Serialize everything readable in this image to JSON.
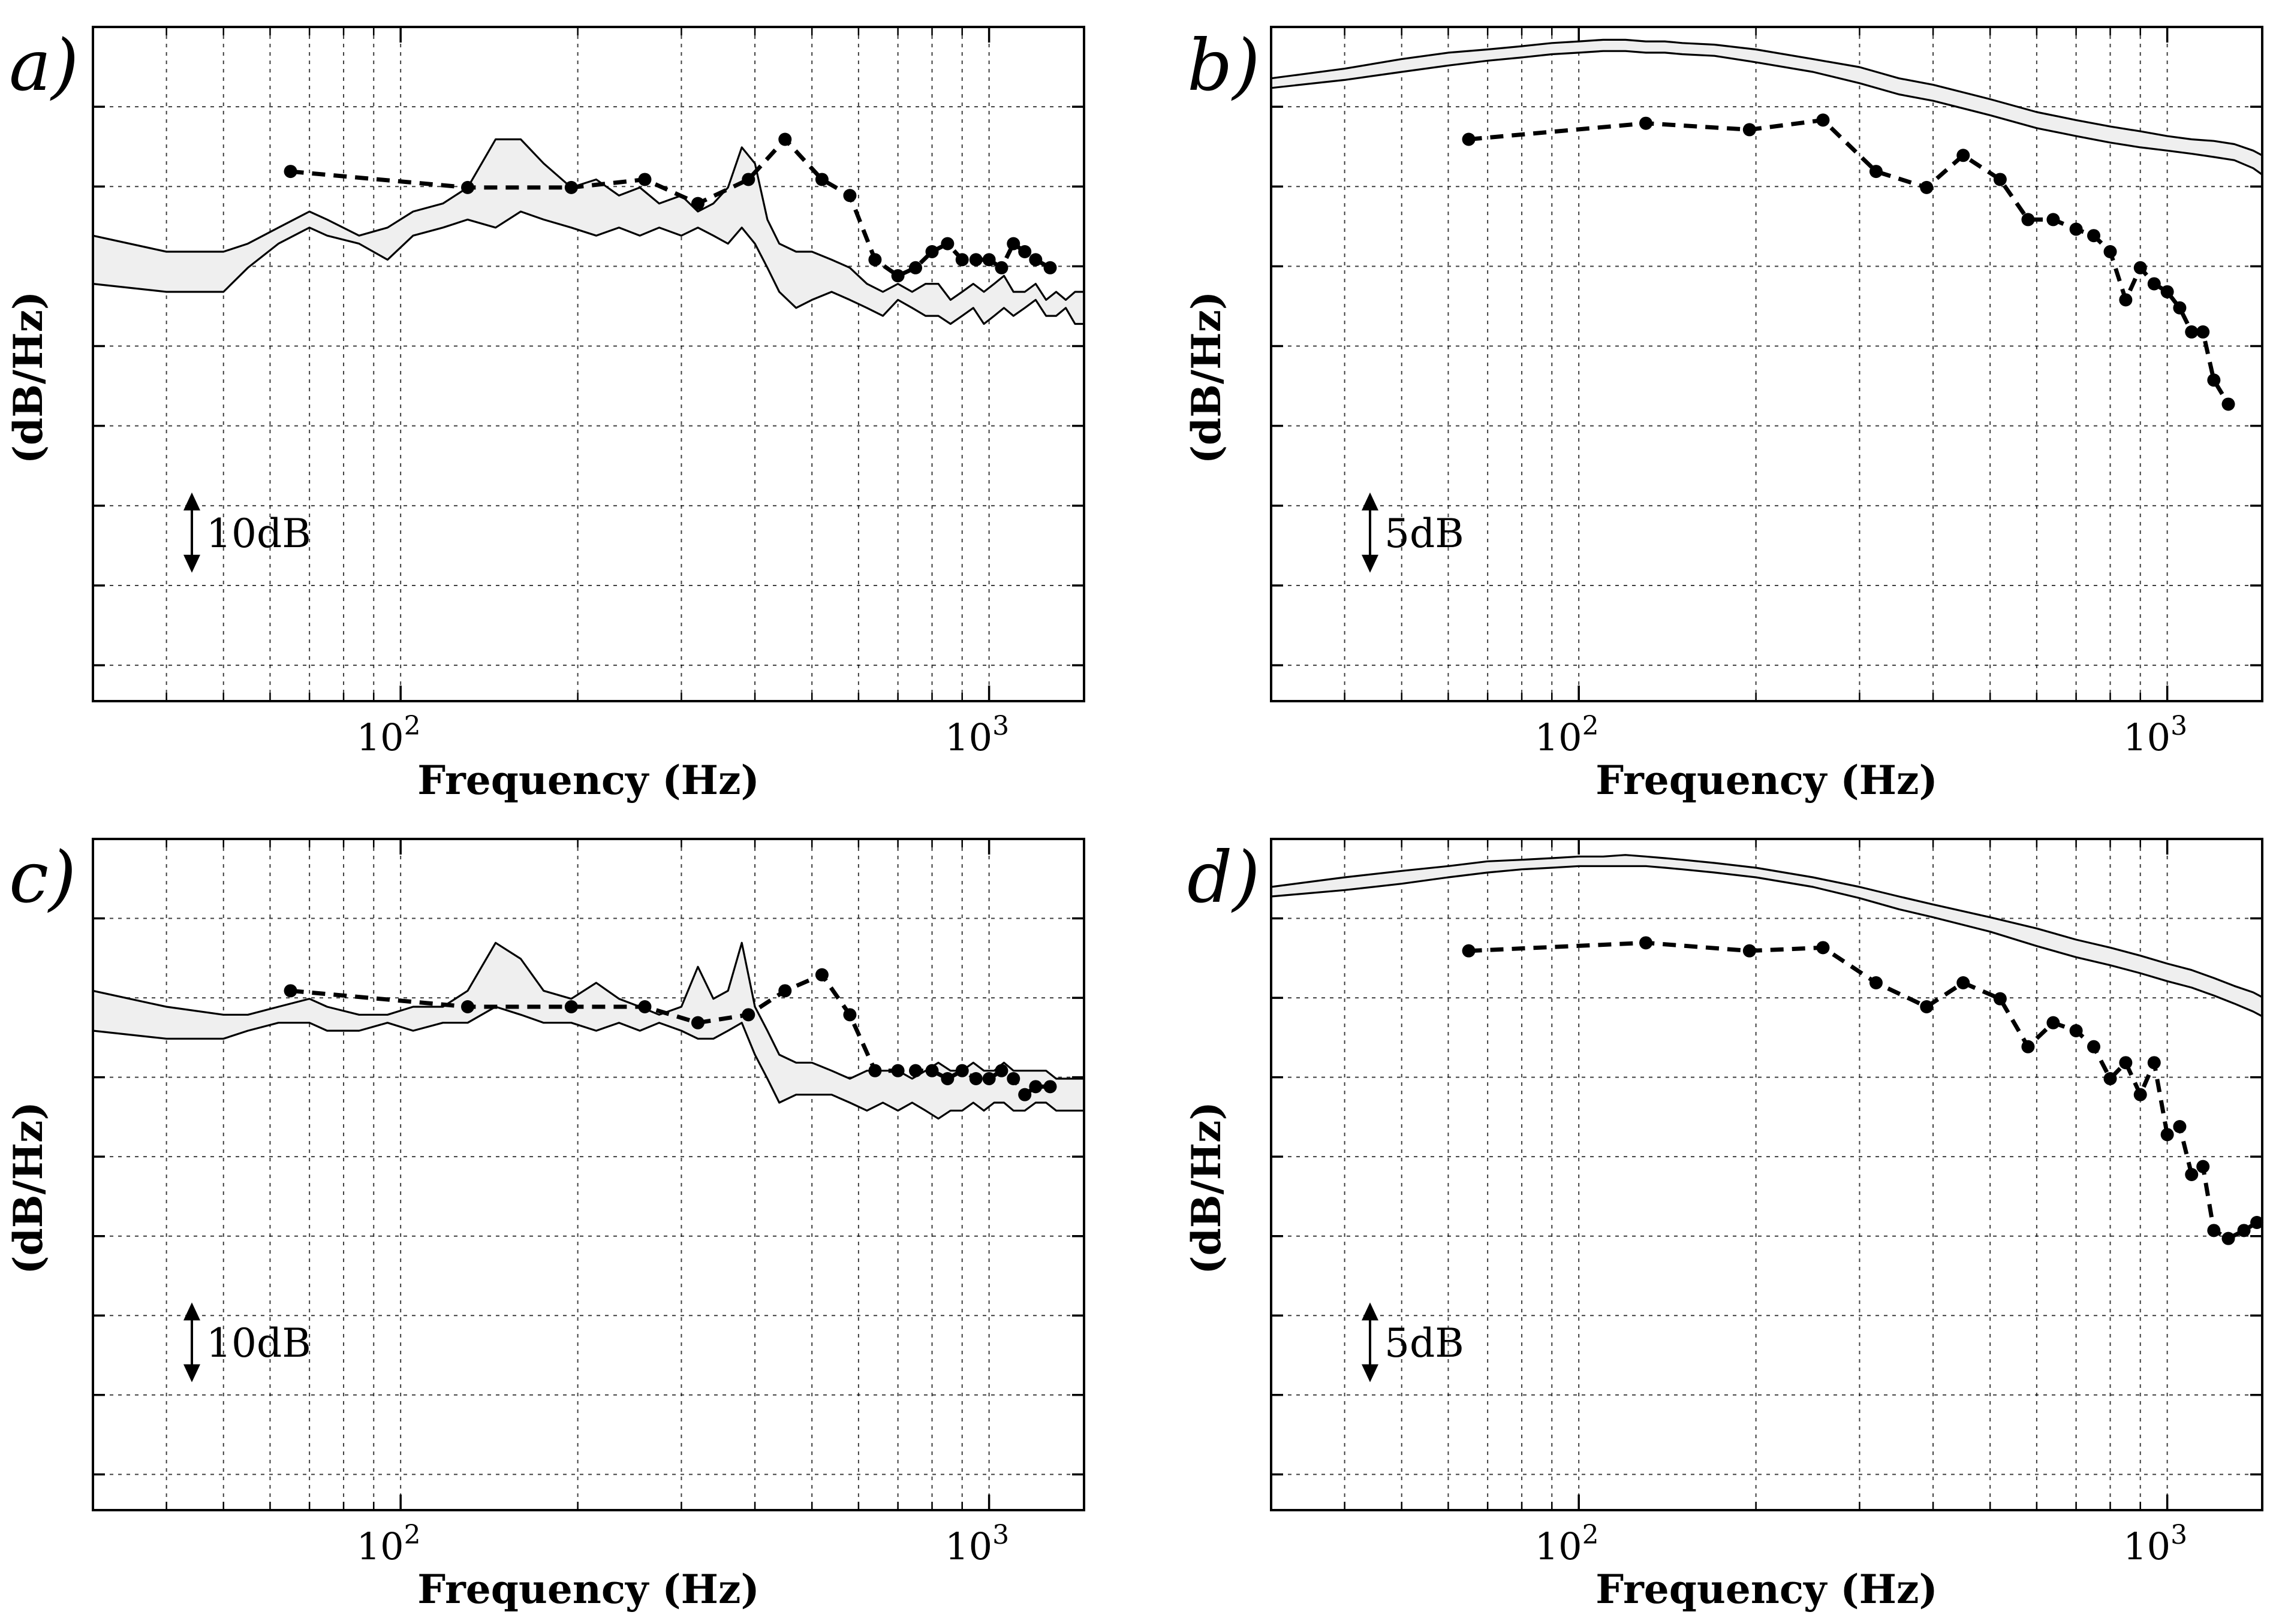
{
  "chart_data": [
    {
      "panel": "a)",
      "type": "line",
      "xlabel": "Frequency (Hz)",
      "ylabel": "(dB/Hz)",
      "xscale": "log",
      "xlim": [
        30,
        1450
      ],
      "ylim": [
        -62,
        22
      ],
      "grid": true,
      "x_ticks": [
        "10^2",
        "10^3"
      ],
      "scale_bar": "10dB",
      "scale_bar_value": 10,
      "band": {
        "x": [
          30,
          40,
          50,
          55,
          62,
          70,
          75,
          85,
          95,
          105,
          118,
          130,
          145,
          160,
          175,
          195,
          215,
          235,
          255,
          275,
          300,
          320,
          340,
          360,
          380,
          400,
          420,
          440,
          470,
          500,
          540,
          580,
          620,
          660,
          700,
          740,
          780,
          820,
          860,
          900,
          940,
          980,
          1020,
          1060,
          1100,
          1150,
          1200,
          1250,
          1300,
          1350,
          1400,
          1450
        ],
        "upper": [
          -4,
          -6,
          -6,
          -5,
          -3,
          -1,
          -2,
          -4,
          -3,
          -1,
          0,
          2,
          8,
          8,
          5,
          2,
          3,
          1,
          2,
          0,
          1,
          -1,
          0,
          2,
          7,
          5,
          -2,
          -5,
          -6,
          -6,
          -7,
          -8,
          -10,
          -11,
          -10,
          -11,
          -10,
          -10,
          -12,
          -11,
          -10,
          -11,
          -10,
          -9,
          -11,
          -11,
          -10,
          -12,
          -11,
          -12,
          -11,
          -11
        ],
        "lower": [
          -10,
          -11,
          -11,
          -8,
          -5,
          -3,
          -4,
          -5,
          -7,
          -4,
          -3,
          -2,
          -3,
          -1,
          -2,
          -3,
          -4,
          -3,
          -4,
          -3,
          -4,
          -3,
          -4,
          -5,
          -3,
          -5,
          -8,
          -11,
          -13,
          -12,
          -11,
          -12,
          -13,
          -14,
          -12,
          -13,
          -14,
          -14,
          -15,
          -14,
          -13,
          -15,
          -14,
          -13,
          -14,
          -13,
          -12,
          -14,
          -14,
          -13,
          -15,
          -15
        ]
      },
      "dashed_series": {
        "x": [
          65,
          130,
          195,
          260,
          320,
          390,
          450,
          520,
          580,
          640,
          700,
          750,
          800,
          850,
          900,
          950,
          1000,
          1050,
          1100,
          1150,
          1200,
          1270
        ],
        "y": [
          4,
          2,
          2,
          3,
          0,
          3,
          8,
          3,
          1,
          -7,
          -9,
          -8,
          -6,
          -5,
          -7,
          -7,
          -7,
          -8,
          -5,
          -6,
          -7,
          -8
        ]
      }
    },
    {
      "panel": "b)",
      "type": "line",
      "xlabel": "Frequency (Hz)",
      "ylabel": "(dB/Hz)",
      "xscale": "log",
      "xlim": [
        30,
        1450
      ],
      "ylim": [
        -38,
        4
      ],
      "grid": true,
      "x_ticks": [
        "10^2",
        "10^3"
      ],
      "scale_bar": "5dB",
      "scale_bar_value": 5,
      "band": {
        "x": [
          30,
          40,
          50,
          60,
          70,
          80,
          90,
          100,
          110,
          120,
          130,
          140,
          150,
          170,
          200,
          250,
          300,
          350,
          400,
          500,
          600,
          700,
          800,
          900,
          1000,
          1100,
          1200,
          1300,
          1400,
          1450
        ],
        "upper": [
          0.8,
          1.4,
          2.0,
          2.4,
          2.6,
          2.8,
          3.0,
          3.1,
          3.2,
          3.2,
          3.1,
          3.1,
          3.0,
          2.9,
          2.6,
          2.0,
          1.5,
          0.8,
          0.4,
          -0.5,
          -1.3,
          -1.8,
          -2.2,
          -2.5,
          -2.8,
          -3.0,
          -3.1,
          -3.3,
          -3.7,
          -4.0
        ],
        "lower": [
          0.2,
          0.7,
          1.2,
          1.6,
          1.9,
          2.1,
          2.3,
          2.4,
          2.5,
          2.5,
          2.4,
          2.4,
          2.3,
          2.2,
          1.8,
          1.2,
          0.5,
          -0.2,
          -0.6,
          -1.5,
          -2.3,
          -2.8,
          -3.2,
          -3.5,
          -3.7,
          -3.9,
          -4.1,
          -4.3,
          -4.8,
          -5.2
        ]
      },
      "dashed_series": {
        "x": [
          65,
          130,
          195,
          260,
          320,
          390,
          450,
          520,
          580,
          640,
          700,
          750,
          800,
          850,
          900,
          950,
          1000,
          1050,
          1100,
          1150,
          1200,
          1270
        ],
        "y": [
          -3.0,
          -2.0,
          -2.4,
          -1.8,
          -5.0,
          -6.0,
          -4.0,
          -5.5,
          -8.0,
          -8.0,
          -8.6,
          -9.0,
          -10.0,
          -13.0,
          -11.0,
          -12.0,
          -12.5,
          -13.5,
          -15.0,
          -15.0,
          -18.0,
          -19.5
        ]
      }
    },
    {
      "panel": "c)",
      "type": "line",
      "xlabel": "Frequency (Hz)",
      "ylabel": "(dB/Hz)",
      "xscale": "log",
      "xlim": [
        30,
        1450
      ],
      "ylim": [
        -62,
        22
      ],
      "grid": true,
      "x_ticks": [
        "10^2",
        "10^3"
      ],
      "scale_bar": "10dB",
      "scale_bar_value": 10,
      "band": {
        "x": [
          30,
          40,
          50,
          55,
          62,
          70,
          75,
          85,
          95,
          105,
          118,
          130,
          145,
          160,
          175,
          195,
          215,
          235,
          255,
          275,
          300,
          320,
          340,
          360,
          380,
          400,
          420,
          440,
          470,
          500,
          540,
          580,
          620,
          660,
          700,
          740,
          780,
          820,
          860,
          900,
          940,
          980,
          1020,
          1060,
          1100,
          1150,
          1200,
          1250,
          1300,
          1350,
          1400,
          1450
        ],
        "upper": [
          3,
          1,
          0,
          0,
          1,
          2,
          1,
          0,
          0,
          1,
          1,
          3,
          9,
          7,
          3,
          2,
          4,
          2,
          1,
          0,
          1,
          6,
          2,
          3,
          9,
          1,
          -2,
          -5,
          -6,
          -6,
          -7,
          -8,
          -7,
          -7,
          -7,
          -8,
          -7,
          -6,
          -7,
          -7,
          -6,
          -7,
          -7,
          -6,
          -7,
          -7,
          -7,
          -7,
          -8,
          -8,
          -8,
          -8
        ],
        "lower": [
          -2,
          -3,
          -3,
          -2,
          -1,
          -1,
          -2,
          -2,
          -1,
          -2,
          -1,
          -1,
          1,
          0,
          -1,
          -1,
          -2,
          -1,
          -2,
          -1,
          -2,
          -3,
          -3,
          -2,
          -1,
          -5,
          -8,
          -11,
          -10,
          -10,
          -10,
          -11,
          -12,
          -11,
          -12,
          -11,
          -12,
          -13,
          -12,
          -12,
          -11,
          -12,
          -11,
          -11,
          -12,
          -12,
          -11,
          -11,
          -12,
          -12,
          -12,
          -12
        ]
      },
      "dashed_series": {
        "x": [
          65,
          130,
          195,
          260,
          320,
          390,
          450,
          520,
          580,
          640,
          700,
          750,
          800,
          850,
          900,
          950,
          1000,
          1050,
          1100,
          1150,
          1200,
          1270
        ],
        "y": [
          3,
          1,
          1,
          1,
          -1,
          0,
          3,
          5,
          0,
          -7,
          -7,
          -7,
          -7,
          -8,
          -7,
          -8,
          -8,
          -7,
          -8,
          -10,
          -9,
          -9
        ]
      }
    },
    {
      "panel": "d)",
      "type": "line",
      "xlabel": "Frequency (Hz)",
      "ylabel": "(dB/Hz)",
      "xscale": "log",
      "xlim": [
        30,
        1450
      ],
      "ylim": [
        -38,
        4
      ],
      "grid": true,
      "x_ticks": [
        "10^2",
        "10^3"
      ],
      "scale_bar": "5dB",
      "scale_bar_value": 5,
      "band": {
        "x": [
          30,
          40,
          50,
          60,
          70,
          80,
          90,
          100,
          110,
          120,
          130,
          140,
          150,
          170,
          200,
          250,
          300,
          350,
          400,
          500,
          600,
          700,
          800,
          900,
          1000,
          1100,
          1200,
          1300,
          1400,
          1450
        ],
        "upper": [
          1.0,
          1.6,
          2.0,
          2.3,
          2.6,
          2.7,
          2.8,
          2.9,
          2.9,
          3.0,
          2.9,
          2.8,
          2.7,
          2.5,
          2.2,
          1.6,
          1.0,
          0.4,
          -0.1,
          -0.9,
          -1.6,
          -2.3,
          -2.8,
          -3.3,
          -3.8,
          -4.2,
          -4.7,
          -5.2,
          -5.6,
          -5.9
        ],
        "lower": [
          0.4,
          0.8,
          1.2,
          1.6,
          1.9,
          2.1,
          2.2,
          2.3,
          2.3,
          2.3,
          2.3,
          2.2,
          2.1,
          1.9,
          1.6,
          1.0,
          0.3,
          -0.4,
          -0.9,
          -1.8,
          -2.7,
          -3.4,
          -3.9,
          -4.4,
          -4.9,
          -5.3,
          -5.8,
          -6.3,
          -6.8,
          -7.1
        ]
      },
      "dashed_series": {
        "x": [
          65,
          130,
          195,
          260,
          320,
          390,
          450,
          520,
          580,
          640,
          700,
          750,
          800,
          850,
          900,
          950,
          1000,
          1050,
          1100,
          1150,
          1200,
          1270,
          1350,
          1420
        ],
        "y": [
          -3.0,
          -2.5,
          -3.0,
          -2.8,
          -5.0,
          -6.5,
          -5.0,
          -6.0,
          -9.0,
          -7.5,
          -8.0,
          -9.0,
          -11.0,
          -10.0,
          -12.0,
          -10.0,
          -14.5,
          -14.0,
          -17.0,
          -16.5,
          -20.5,
          -21.0,
          -20.5,
          -20.0
        ]
      }
    }
  ]
}
